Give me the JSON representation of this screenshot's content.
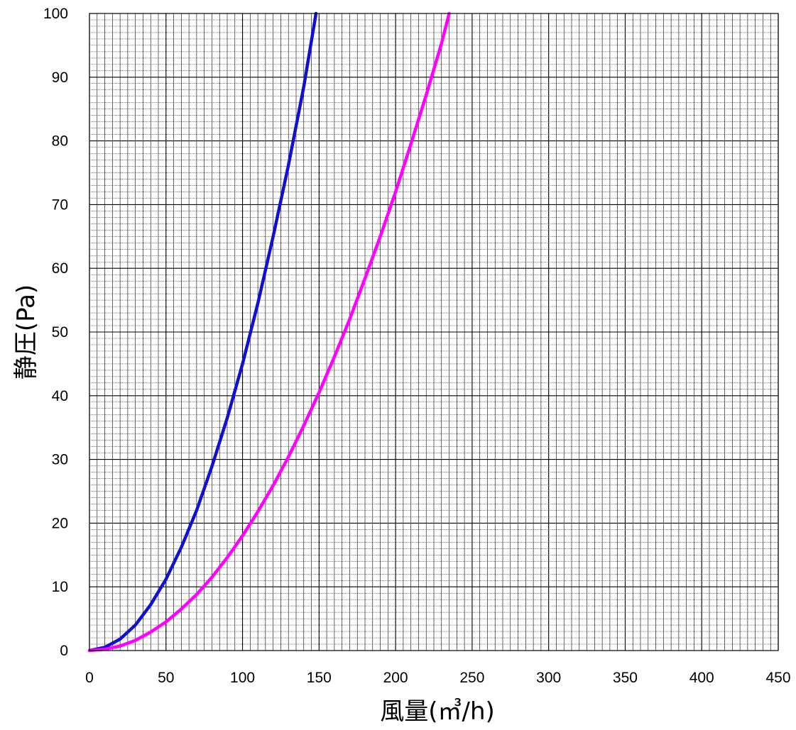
{
  "chart_data": {
    "type": "line",
    "xlabel": "風量(㎥/h)",
    "ylabel": "静圧(Pa)",
    "xlim": [
      0,
      450
    ],
    "ylim": [
      0,
      100
    ],
    "x_ticks": [
      0,
      50,
      100,
      150,
      200,
      250,
      300,
      350,
      400,
      450
    ],
    "y_ticks": [
      0,
      10,
      20,
      30,
      40,
      50,
      60,
      70,
      80,
      90,
      100
    ],
    "x_minor_step": 5,
    "y_minor_step": 1,
    "grid": true,
    "series": [
      {
        "color": "#1010d0",
        "x": [
          0,
          10,
          20,
          30,
          40,
          50,
          60,
          70,
          80,
          90,
          100,
          110,
          120,
          130,
          140,
          148
        ],
        "y": [
          0,
          0.5,
          1.8,
          4.0,
          7.2,
          11.2,
          16.2,
          22.0,
          28.9,
          36.5,
          45.0,
          54.5,
          65.0,
          76.2,
          88.5,
          100
        ]
      },
      {
        "color": "#ff00ff",
        "x": [
          0,
          10,
          20,
          30,
          40,
          50,
          60,
          70,
          80,
          90,
          100,
          110,
          120,
          130,
          140,
          150,
          160,
          170,
          180,
          190,
          200,
          210,
          220,
          230,
          235
        ],
        "y": [
          0,
          0.2,
          0.7,
          1.6,
          2.9,
          4.5,
          6.5,
          8.8,
          11.5,
          14.6,
          18.0,
          21.8,
          25.9,
          30.4,
          35.3,
          40.5,
          46.1,
          52.0,
          58.4,
          65.0,
          72.0,
          79.5,
          87.2,
          95.3,
          100
        ]
      }
    ]
  }
}
